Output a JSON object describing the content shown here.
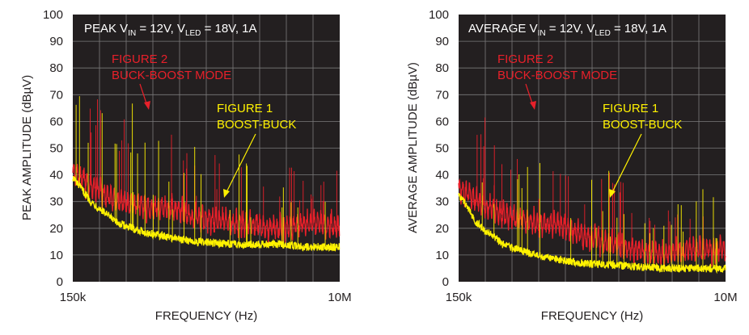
{
  "charts": [
    {
      "id": "peak",
      "title_main": "PEAK V",
      "title_in_sub": "IN",
      "title_mid": " = 12V, V",
      "title_led_sub": "LED",
      "title_end": " = 18V, 1A",
      "ylabel": "PEAK AMPLITUDE (dBµV)",
      "xlabel": "FREQUENCY (Hz)"
    },
    {
      "id": "average",
      "title_main": "AVERAGE V",
      "title_in_sub": "IN",
      "title_mid": " = 12V, V",
      "title_led_sub": "LED",
      "title_end": " = 18V, 1A",
      "ylabel": "AVERAGE AMPLITUDE (dBµV)",
      "xlabel": "FREQUENCY (Hz)"
    }
  ],
  "annotations": {
    "fig2_line1": "FIGURE 2",
    "fig2_line2": "BUCK-BOOST MODE",
    "fig1_line1": "FIGURE 1",
    "fig1_line2": "BOOST-BUCK"
  },
  "colors": {
    "plot_bg": "#231f20",
    "grid": "#7a7a7a",
    "fig2_red": "#e8202a",
    "fig1_yellow": "#fff200"
  },
  "chart_data": [
    {
      "type": "line",
      "title": "PEAK VIN = 12V, VLED = 18V, 1A",
      "xlabel": "FREQUENCY (Hz)",
      "ylabel": "PEAK AMPLITUDE (dBµV)",
      "x_scale": "log",
      "xlim": [
        150000,
        10000000
      ],
      "x_tick_labels": [
        "150k",
        "10M"
      ],
      "ylim": [
        0,
        100
      ],
      "y_ticks": [
        0,
        10,
        20,
        30,
        40,
        50,
        60,
        70,
        80,
        90,
        100
      ],
      "grid": true,
      "series": [
        {
          "name": "FIGURE 2 BUCK-BOOST MODE",
          "color": "#e8202a",
          "x": [
            150000,
            200000,
            300000,
            500000,
            800000,
            1000000,
            2000000,
            4000000,
            6000000,
            10000000
          ],
          "y": [
            41,
            36,
            30,
            28,
            27,
            24,
            22,
            20,
            22,
            21
          ]
        },
        {
          "name": "FIGURE 1 BOOST-BUCK",
          "color": "#fff200",
          "x": [
            150000,
            200000,
            300000,
            500000,
            800000,
            1000000,
            2000000,
            4000000,
            6000000,
            10000000
          ],
          "y": [
            39,
            30,
            22,
            18,
            16,
            15,
            14,
            14,
            13,
            13
          ]
        }
      ]
    },
    {
      "type": "line",
      "title": "AVERAGE VIN = 12V, VLED = 18V, 1A",
      "xlabel": "FREQUENCY (Hz)",
      "ylabel": "AVERAGE AMPLITUDE (dBµV)",
      "x_scale": "log",
      "xlim": [
        150000,
        10000000
      ],
      "x_tick_labels": [
        "150k",
        "10M"
      ],
      "ylim": [
        0,
        100
      ],
      "y_ticks": [
        0,
        10,
        20,
        30,
        40,
        50,
        60,
        70,
        80,
        90,
        100
      ],
      "grid": true,
      "series": [
        {
          "name": "FIGURE 2 BUCK-BOOST MODE",
          "color": "#e8202a",
          "x": [
            150000,
            200000,
            300000,
            500000,
            800000,
            1000000,
            2000000,
            4000000,
            6000000,
            10000000
          ],
          "y": [
            35,
            30,
            25,
            22,
            21,
            18,
            13,
            10,
            12,
            12
          ]
        },
        {
          "name": "FIGURE 1 BOOST-BUCK",
          "color": "#fff200",
          "x": [
            150000,
            200000,
            300000,
            500000,
            800000,
            1000000,
            2000000,
            4000000,
            6000000,
            10000000
          ],
          "y": [
            33,
            22,
            14,
            10,
            8,
            7,
            6,
            5,
            5,
            5
          ]
        }
      ]
    }
  ]
}
